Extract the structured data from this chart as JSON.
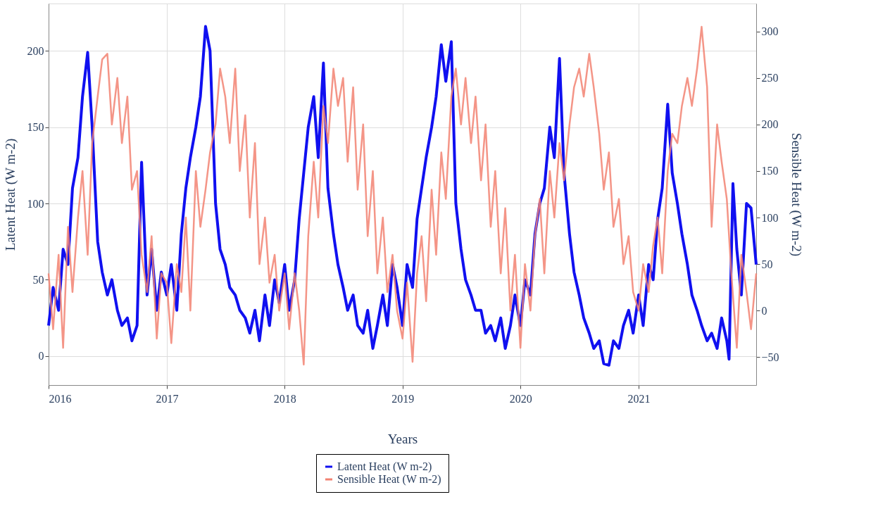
{
  "chart_data": {
    "type": "line",
    "xlabel": "Years",
    "ylabel": "Latent Heat (W m-2)",
    "y2label": "Sensible Heat (W m-2)",
    "xlim": [
      "2016-01-01",
      "2021-12-31"
    ],
    "xticks": [
      "2016",
      "2017",
      "2018",
      "2019",
      "2020",
      "2021"
    ],
    "ylim": [
      -19,
      231
    ],
    "yticks": [
      0,
      50,
      100,
      150,
      200
    ],
    "y2lim": [
      -80,
      330
    ],
    "y2ticks": [
      -50,
      0,
      50,
      100,
      150,
      200,
      250,
      300
    ],
    "grid": true,
    "legend": "bottom",
    "line_style": "solid",
    "marker": "none",
    "series": [
      {
        "name": "Latent Heat (W m-2)",
        "color": "#1010f0",
        "x": [
          "2016-01-01",
          "2016-01-15",
          "2016-02-01",
          "2016-02-15",
          "2016-03-01",
          "2016-03-15",
          "2016-04-01",
          "2016-04-15",
          "2016-05-01",
          "2016-05-15",
          "2016-06-01",
          "2016-06-15",
          "2016-07-01",
          "2016-07-15",
          "2016-08-01",
          "2016-08-15",
          "2016-09-01",
          "2016-09-15",
          "2016-10-01",
          "2016-10-15",
          "2016-11-01",
          "2016-11-15",
          "2016-12-01",
          "2016-12-15",
          "2017-01-01",
          "2017-01-15",
          "2017-02-01",
          "2017-02-15",
          "2017-03-01",
          "2017-03-15",
          "2017-04-01",
          "2017-04-15",
          "2017-05-01",
          "2017-05-15",
          "2017-06-01",
          "2017-06-15",
          "2017-07-01",
          "2017-07-15",
          "2017-08-01",
          "2017-08-15",
          "2017-09-01",
          "2017-09-15",
          "2017-10-01",
          "2017-10-15",
          "2017-11-01",
          "2017-11-15",
          "2017-12-01",
          "2017-12-15",
          "2018-01-01",
          "2018-01-15",
          "2018-02-01",
          "2018-02-15",
          "2018-03-01",
          "2018-03-15",
          "2018-04-01",
          "2018-04-15",
          "2018-05-01",
          "2018-05-15",
          "2018-06-01",
          "2018-06-15",
          "2018-07-01",
          "2018-07-15",
          "2018-08-01",
          "2018-08-15",
          "2018-09-01",
          "2018-09-15",
          "2018-10-01",
          "2018-10-15",
          "2018-11-01",
          "2018-11-15",
          "2018-12-01",
          "2018-12-15",
          "2019-01-01",
          "2019-01-15",
          "2019-02-01",
          "2019-02-15",
          "2019-03-01",
          "2019-03-15",
          "2019-04-01",
          "2019-04-15",
          "2019-05-01",
          "2019-05-15",
          "2019-06-01",
          "2019-06-15",
          "2019-07-01",
          "2019-07-15",
          "2019-08-01",
          "2019-08-15",
          "2019-09-01",
          "2019-09-15",
          "2019-10-01",
          "2019-10-15",
          "2019-11-01",
          "2019-11-15",
          "2019-12-01",
          "2019-12-15",
          "2020-01-01",
          "2020-01-15",
          "2020-02-01",
          "2020-02-15",
          "2020-03-01",
          "2020-03-15",
          "2020-04-01",
          "2020-04-15",
          "2020-05-01",
          "2020-05-15",
          "2020-06-01",
          "2020-06-15",
          "2020-07-01",
          "2020-07-15",
          "2020-08-01",
          "2020-08-15",
          "2020-09-01",
          "2020-09-15",
          "2020-10-01",
          "2020-10-15",
          "2020-11-01",
          "2020-11-15",
          "2020-12-01",
          "2020-12-15",
          "2021-01-01",
          "2021-01-15",
          "2021-02-01",
          "2021-02-15",
          "2021-03-01",
          "2021-03-15",
          "2021-04-01",
          "2021-04-15",
          "2021-05-01",
          "2021-05-15",
          "2021-06-01",
          "2021-06-15",
          "2021-07-01",
          "2021-07-15",
          "2021-08-01",
          "2021-08-15",
          "2021-09-01",
          "2021-09-15",
          "2021-10-01",
          "2021-10-08",
          "2021-10-20",
          "2021-11-01",
          "2021-11-15",
          "2021-12-01",
          "2021-12-15",
          "2021-12-31"
        ],
        "values": [
          20,
          45,
          30,
          70,
          60,
          110,
          130,
          170,
          199,
          150,
          75,
          55,
          40,
          50,
          30,
          20,
          25,
          10,
          20,
          127,
          40,
          70,
          30,
          55,
          40,
          60,
          30,
          80,
          110,
          130,
          150,
          170,
          216,
          200,
          100,
          70,
          60,
          45,
          40,
          30,
          25,
          15,
          30,
          10,
          40,
          20,
          50,
          35,
          60,
          30,
          50,
          90,
          120,
          150,
          170,
          130,
          192,
          110,
          80,
          60,
          45,
          30,
          40,
          20,
          15,
          30,
          5,
          20,
          40,
          20,
          60,
          45,
          20,
          60,
          45,
          90,
          110,
          130,
          150,
          170,
          204,
          180,
          206,
          100,
          70,
          50,
          40,
          30,
          30,
          15,
          20,
          10,
          25,
          5,
          20,
          40,
          20,
          50,
          40,
          80,
          100,
          110,
          150,
          130,
          195,
          120,
          80,
          55,
          40,
          25,
          15,
          5,
          10,
          -5,
          -6,
          10,
          5,
          20,
          30,
          15,
          40,
          20,
          60,
          50,
          90,
          110,
          165,
          120,
          100,
          80,
          60,
          40,
          30,
          20,
          10,
          15,
          5,
          25,
          10,
          -2,
          113,
          70,
          40,
          100,
          97,
          60
        ]
      },
      {
        "name": "Sensible Heat (W m-2)",
        "color": "#f28272",
        "axis": "y2",
        "x": [
          "2016-01-01",
          "2016-01-15",
          "2016-02-01",
          "2016-02-15",
          "2016-03-01",
          "2016-03-15",
          "2016-04-01",
          "2016-04-15",
          "2016-05-01",
          "2016-05-15",
          "2016-06-01",
          "2016-06-15",
          "2016-07-01",
          "2016-07-15",
          "2016-08-01",
          "2016-08-15",
          "2016-09-01",
          "2016-09-15",
          "2016-10-01",
          "2016-10-15",
          "2016-11-01",
          "2016-11-15",
          "2016-12-01",
          "2016-12-15",
          "2017-01-01",
          "2017-01-15",
          "2017-02-01",
          "2017-02-15",
          "2017-03-01",
          "2017-03-15",
          "2017-04-01",
          "2017-04-15",
          "2017-05-01",
          "2017-05-15",
          "2017-06-01",
          "2017-06-15",
          "2017-07-01",
          "2017-07-15",
          "2017-08-01",
          "2017-08-15",
          "2017-09-01",
          "2017-09-15",
          "2017-10-01",
          "2017-10-15",
          "2017-11-01",
          "2017-11-15",
          "2017-12-01",
          "2017-12-15",
          "2018-01-01",
          "2018-01-15",
          "2018-02-01",
          "2018-02-15",
          "2018-03-01",
          "2018-03-15",
          "2018-04-01",
          "2018-04-15",
          "2018-05-01",
          "2018-05-15",
          "2018-06-01",
          "2018-06-15",
          "2018-07-01",
          "2018-07-15",
          "2018-08-01",
          "2018-08-15",
          "2018-09-01",
          "2018-09-15",
          "2018-10-01",
          "2018-10-15",
          "2018-11-01",
          "2018-11-15",
          "2018-12-01",
          "2018-12-15",
          "2019-01-01",
          "2019-01-15",
          "2019-02-01",
          "2019-02-15",
          "2019-03-01",
          "2019-03-15",
          "2019-04-01",
          "2019-04-15",
          "2019-05-01",
          "2019-05-15",
          "2019-06-01",
          "2019-06-15",
          "2019-07-01",
          "2019-07-15",
          "2019-08-01",
          "2019-08-15",
          "2019-09-01",
          "2019-09-15",
          "2019-10-01",
          "2019-10-15",
          "2019-11-01",
          "2019-11-15",
          "2019-12-01",
          "2019-12-15",
          "2020-01-01",
          "2020-01-15",
          "2020-02-01",
          "2020-02-15",
          "2020-03-01",
          "2020-03-15",
          "2020-04-01",
          "2020-04-15",
          "2020-05-01",
          "2020-05-15",
          "2020-06-01",
          "2020-06-15",
          "2020-07-01",
          "2020-07-15",
          "2020-08-01",
          "2020-08-15",
          "2020-09-01",
          "2020-09-15",
          "2020-10-01",
          "2020-10-15",
          "2020-11-01",
          "2020-11-15",
          "2020-12-01",
          "2020-12-15",
          "2021-01-01",
          "2021-01-15",
          "2021-02-01",
          "2021-02-15",
          "2021-03-01",
          "2021-03-15",
          "2021-04-01",
          "2021-04-15",
          "2021-05-01",
          "2021-05-15",
          "2021-06-01",
          "2021-06-15",
          "2021-07-01",
          "2021-07-15",
          "2021-08-01",
          "2021-08-15",
          "2021-09-01",
          "2021-09-15",
          "2021-10-01",
          "2021-10-15",
          "2021-11-01",
          "2021-11-15",
          "2021-12-01",
          "2021-12-15",
          "2021-12-31"
        ],
        "values": [
          40,
          -20,
          60,
          -40,
          90,
          20,
          100,
          150,
          60,
          180,
          230,
          270,
          276,
          200,
          250,
          180,
          230,
          130,
          150,
          60,
          20,
          80,
          -30,
          40,
          30,
          -35,
          50,
          20,
          100,
          0,
          150,
          90,
          130,
          170,
          200,
          260,
          230,
          180,
          260,
          150,
          210,
          100,
          180,
          50,
          100,
          30,
          60,
          0,
          40,
          -20,
          40,
          0,
          -58,
          80,
          160,
          100,
          220,
          180,
          260,
          220,
          250,
          160,
          240,
          130,
          200,
          80,
          150,
          40,
          100,
          20,
          60,
          0,
          -30,
          30,
          -55,
          40,
          80,
          10,
          130,
          60,
          170,
          120,
          230,
          260,
          200,
          250,
          180,
          230,
          140,
          200,
          90,
          150,
          40,
          110,
          0,
          60,
          -40,
          50,
          0,
          80,
          120,
          40,
          150,
          100,
          180,
          140,
          200,
          240,
          260,
          230,
          276,
          240,
          190,
          130,
          170,
          90,
          120,
          50,
          80,
          20,
          0,
          50,
          20,
          70,
          100,
          40,
          150,
          190,
          180,
          220,
          250,
          220,
          260,
          305,
          240,
          90,
          200,
          160,
          120,
          40,
          -40,
          60,
          20,
          -20,
          40
        ]
      }
    ]
  }
}
